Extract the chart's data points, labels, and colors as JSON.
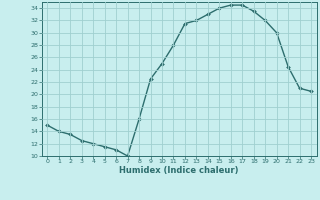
{
  "x": [
    0,
    1,
    2,
    3,
    4,
    5,
    6,
    7,
    8,
    9,
    10,
    11,
    12,
    13,
    14,
    15,
    16,
    17,
    18,
    19,
    20,
    21,
    22,
    23
  ],
  "y": [
    15,
    14,
    13.5,
    12.5,
    12,
    11.5,
    11,
    10,
    16,
    22.5,
    25,
    28,
    31.5,
    32,
    33,
    34,
    34.5,
    34.5,
    33.5,
    32,
    30,
    24.5,
    21,
    20.5
  ],
  "line_color": "#2d6e6e",
  "bg_color": "#c8eeee",
  "grid_color": "#a0d0d0",
  "xlabel": "Humidex (Indice chaleur)",
  "ylim": [
    10,
    35
  ],
  "xlim": [
    -0.5,
    23.5
  ],
  "yticks": [
    10,
    12,
    14,
    16,
    18,
    20,
    22,
    24,
    26,
    28,
    30,
    32,
    34
  ],
  "xticks": [
    0,
    1,
    2,
    3,
    4,
    5,
    6,
    7,
    8,
    9,
    10,
    11,
    12,
    13,
    14,
    15,
    16,
    17,
    18,
    19,
    20,
    21,
    22,
    23
  ],
  "marker": "D",
  "markersize": 2.0,
  "linewidth": 1.0
}
